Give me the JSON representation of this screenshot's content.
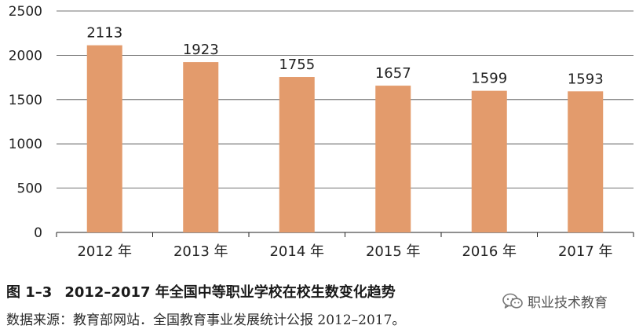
{
  "chart_data": {
    "type": "bar",
    "categories": [
      "2012 年",
      "2013 年",
      "2014 年",
      "2015 年",
      "2016 年",
      "2017 年"
    ],
    "values": [
      2113,
      1923,
      1755,
      1657,
      1599,
      1593
    ],
    "data_labels": [
      "2113",
      "1923",
      "1755",
      "1657",
      "1599",
      "1593"
    ],
    "ylim": [
      0,
      2500
    ],
    "yticks": [
      0,
      500,
      1000,
      1500,
      2000,
      2500
    ],
    "ytick_labels": [
      "0",
      "500",
      "1000",
      "1500",
      "2000",
      "2500"
    ],
    "grid": true,
    "bar_color": "#E39B6C"
  },
  "caption": {
    "figure_number": "图 1–3",
    "title": "2012–2017 年全国中等职业学校在校生数变化趋势"
  },
  "source": "数据来源：教育部网站．全国教育事业发展统计公报 2012–2017。",
  "watermark": {
    "text": "职业技术教育",
    "icon": "wechat-icon"
  }
}
